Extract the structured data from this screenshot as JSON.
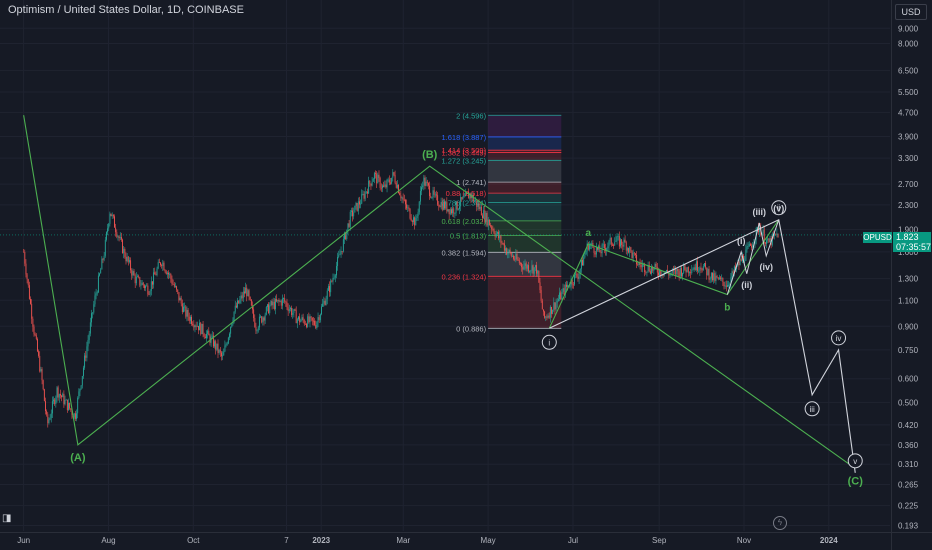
{
  "header": {
    "title": "Optimism / United States Dollar, 1D, COINBASE"
  },
  "price_axis": {
    "currency": "USD",
    "current_price": "1.823",
    "countdown": "07:35:57",
    "symbol": "OPUSD"
  },
  "colors": {
    "background": "#161a25",
    "up_candle": "#26a69a",
    "down_candle": "#ef5350",
    "wave_green": "#4caf50",
    "projection_white": "#d1d4dc",
    "axis_text": "#b2b5be",
    "price_badge": "#089981"
  },
  "chart_data": {
    "type": "candlestick",
    "y_scale": "log",
    "ylim": [
      0.185,
      11.2
    ],
    "price_ticks": [
      "9.000",
      "8.000",
      "6.500",
      "5.500",
      "4.700",
      "3.900",
      "3.300",
      "2.700",
      "2.300",
      "1.900",
      "1.600",
      "1.300",
      "1.100",
      "0.900",
      "0.750",
      "0.600",
      "0.500",
      "0.420",
      "0.360",
      "0.310",
      "0.265",
      "0.225",
      "0.193"
    ],
    "time_ticks": [
      "Jun",
      "Aug",
      "Oct",
      "7",
      "2023",
      "Mar",
      "May",
      "Jul",
      "Sep",
      "Nov",
      "2024"
    ],
    "price_path": [
      [
        "2022-06-01",
        1.6
      ],
      [
        "2022-06-08",
        0.9
      ],
      [
        "2022-06-14",
        0.6
      ],
      [
        "2022-06-18",
        0.42
      ],
      [
        "2022-06-25",
        0.55
      ],
      [
        "2022-07-01",
        0.5
      ],
      [
        "2022-07-08",
        0.45
      ],
      [
        "2022-07-15",
        0.7
      ],
      [
        "2022-07-22",
        1.1
      ],
      [
        "2022-07-29",
        1.6
      ],
      [
        "2022-08-02",
        2.2
      ],
      [
        "2022-08-12",
        1.6
      ],
      [
        "2022-08-20",
        1.3
      ],
      [
        "2022-08-30",
        1.2
      ],
      [
        "2022-09-08",
        1.5
      ],
      [
        "2022-09-15",
        1.3
      ],
      [
        "2022-09-25",
        1.0
      ],
      [
        "2022-10-05",
        0.9
      ],
      [
        "2022-10-15",
        0.8
      ],
      [
        "2022-10-22",
        0.7
      ],
      [
        "2022-10-30",
        1.0
      ],
      [
        "2022-11-08",
        1.2
      ],
      [
        "2022-11-15",
        0.9
      ],
      [
        "2022-11-25",
        1.05
      ],
      [
        "2022-12-05",
        1.1
      ],
      [
        "2022-12-15",
        0.95
      ],
      [
        "2022-12-28",
        0.92
      ],
      [
        "2023-01-08",
        1.25
      ],
      [
        "2023-01-15",
        1.6
      ],
      [
        "2023-01-22",
        2.1
      ],
      [
        "2023-01-30",
        2.4
      ],
      [
        "2023-02-08",
        2.9
      ],
      [
        "2023-02-15",
        2.6
      ],
      [
        "2023-02-22",
        2.9
      ],
      [
        "2023-03-02",
        2.3
      ],
      [
        "2023-03-10",
        2.0
      ],
      [
        "2023-03-15",
        2.8
      ],
      [
        "2023-03-24",
        2.4
      ],
      [
        "2023-04-05",
        2.2
      ],
      [
        "2023-04-18",
        2.5
      ],
      [
        "2023-04-26",
        2.2
      ],
      [
        "2023-05-05",
        1.9
      ],
      [
        "2023-05-15",
        1.6
      ],
      [
        "2023-05-25",
        1.45
      ],
      [
        "2023-06-05",
        1.4
      ],
      [
        "2023-06-10",
        0.95
      ],
      [
        "2023-06-20",
        1.1
      ],
      [
        "2023-06-28",
        1.25
      ],
      [
        "2023-07-05",
        1.35
      ],
      [
        "2023-07-12",
        1.7
      ],
      [
        "2023-07-20",
        1.6
      ],
      [
        "2023-07-30",
        1.75
      ],
      [
        "2023-08-08",
        1.7
      ],
      [
        "2023-08-17",
        1.45
      ],
      [
        "2023-08-28",
        1.4
      ],
      [
        "2023-09-10",
        1.35
      ],
      [
        "2023-09-20",
        1.4
      ],
      [
        "2023-10-01",
        1.45
      ],
      [
        "2023-10-10",
        1.3
      ],
      [
        "2023-10-20",
        1.25
      ],
      [
        "2023-10-28",
        1.45
      ],
      [
        "2023-11-05",
        1.65
      ],
      [
        "2023-11-12",
        1.95
      ],
      [
        "2023-11-18",
        1.7
      ],
      [
        "2023-11-26",
        1.85
      ]
    ],
    "fibonacci": {
      "from_date": "2023-05-01",
      "to_date": "2023-06-14",
      "levels": [
        {
          "label": "0 (0.886)",
          "value": 0.886,
          "color": "#b2b5be"
        },
        {
          "label": "0.236 (1.324)",
          "value": 1.324,
          "color": "#f23645"
        },
        {
          "label": "0.382 (1.594)",
          "value": 1.594,
          "color": "#b2b5be"
        },
        {
          "label": "0.5 (1.813)",
          "value": 1.813,
          "color": "#4caf50"
        },
        {
          "label": "0.618 (2.032)",
          "value": 2.032,
          "color": "#4caf50"
        },
        {
          "label": "0.786 (2.344)",
          "value": 2.344,
          "color": "#26a69a"
        },
        {
          "label": "0.88 (2.518)",
          "value": 2.518,
          "color": "#f23645"
        },
        {
          "label": "1 (2.741)",
          "value": 2.741,
          "color": "#b2b5be"
        },
        {
          "label": "1.272 (3.245)",
          "value": 3.245,
          "color": "#26a69a"
        },
        {
          "label": "1.382 (3.449)",
          "value": 3.449,
          "color": "#f23645"
        },
        {
          "label": "1.414 (3.509)",
          "value": 3.509,
          "color": "#f23645"
        },
        {
          "label": "1.618 (3.887)",
          "value": 3.887,
          "color": "#2962ff"
        },
        {
          "label": "2 (4.596)",
          "value": 4.596,
          "color": "#26a69a"
        }
      ]
    },
    "waves": {
      "abc_primary": [
        [
          "2022-06-01",
          4.6
        ],
        [
          "2022-07-10",
          0.36
        ],
        [
          "2023-03-20",
          3.1
        ],
        [
          "2024-01-20",
          0.3
        ]
      ],
      "abc_primary_labels": [
        {
          "text": "(A)",
          "date": "2022-07-10",
          "price": 0.36,
          "pos": "below"
        },
        {
          "text": "(B)",
          "date": "2023-03-20",
          "price": 3.1,
          "pos": "above"
        },
        {
          "text": "(C)",
          "date": "2024-01-20",
          "price": 0.3,
          "pos": "below"
        }
      ],
      "abc_minor": [
        [
          "2023-06-14",
          0.886
        ],
        [
          "2023-07-12",
          1.7
        ],
        [
          "2023-10-20",
          1.15
        ],
        [
          "2023-11-26",
          2.05
        ]
      ],
      "abc_minor_labels": [
        {
          "text": "a",
          "date": "2023-07-12",
          "price": 1.7,
          "pos": "above"
        },
        {
          "text": "b",
          "date": "2023-10-20",
          "price": 1.15,
          "pos": "below"
        }
      ],
      "impulse": [
        [
          "2023-10-20",
          1.15
        ],
        [
          "2023-10-30",
          1.6
        ],
        [
          "2023-11-03",
          1.35
        ],
        [
          "2023-11-12",
          2.0
        ],
        [
          "2023-11-17",
          1.55
        ],
        [
          "2023-11-26",
          2.05
        ]
      ],
      "impulse_labels": [
        {
          "text": "(i)",
          "date": "2023-10-30",
          "price": 1.6,
          "pos": "above"
        },
        {
          "text": "(ii)",
          "date": "2023-11-03",
          "price": 1.35,
          "pos": "below"
        },
        {
          "text": "(iii)",
          "date": "2023-11-12",
          "price": 2.0,
          "pos": "above"
        },
        {
          "text": "(iv)",
          "date": "2023-11-17",
          "price": 1.55,
          "pos": "below"
        },
        {
          "text": "(v)",
          "date": "2023-11-26",
          "price": 2.05,
          "pos": "above"
        }
      ],
      "projection": [
        [
          "2023-06-14",
          0.886
        ],
        [
          "2023-11-26",
          2.05
        ],
        [
          "2023-12-20",
          0.53
        ],
        [
          "2024-01-08",
          0.75
        ],
        [
          "2024-01-20",
          0.29
        ]
      ],
      "projection_labels": [
        {
          "text": "i",
          "date": "2023-06-14",
          "price": 0.886,
          "pos": "below"
        },
        {
          "text": "ii",
          "date": "2023-11-26",
          "price": 2.05,
          "pos": "above"
        },
        {
          "text": "iii",
          "date": "2023-12-20",
          "price": 0.53,
          "pos": "below"
        },
        {
          "text": "iv",
          "date": "2024-01-08",
          "price": 0.75,
          "pos": "above"
        },
        {
          "text": "v",
          "date": "2024-01-20",
          "price": 0.29,
          "pos": "above"
        }
      ]
    }
  }
}
